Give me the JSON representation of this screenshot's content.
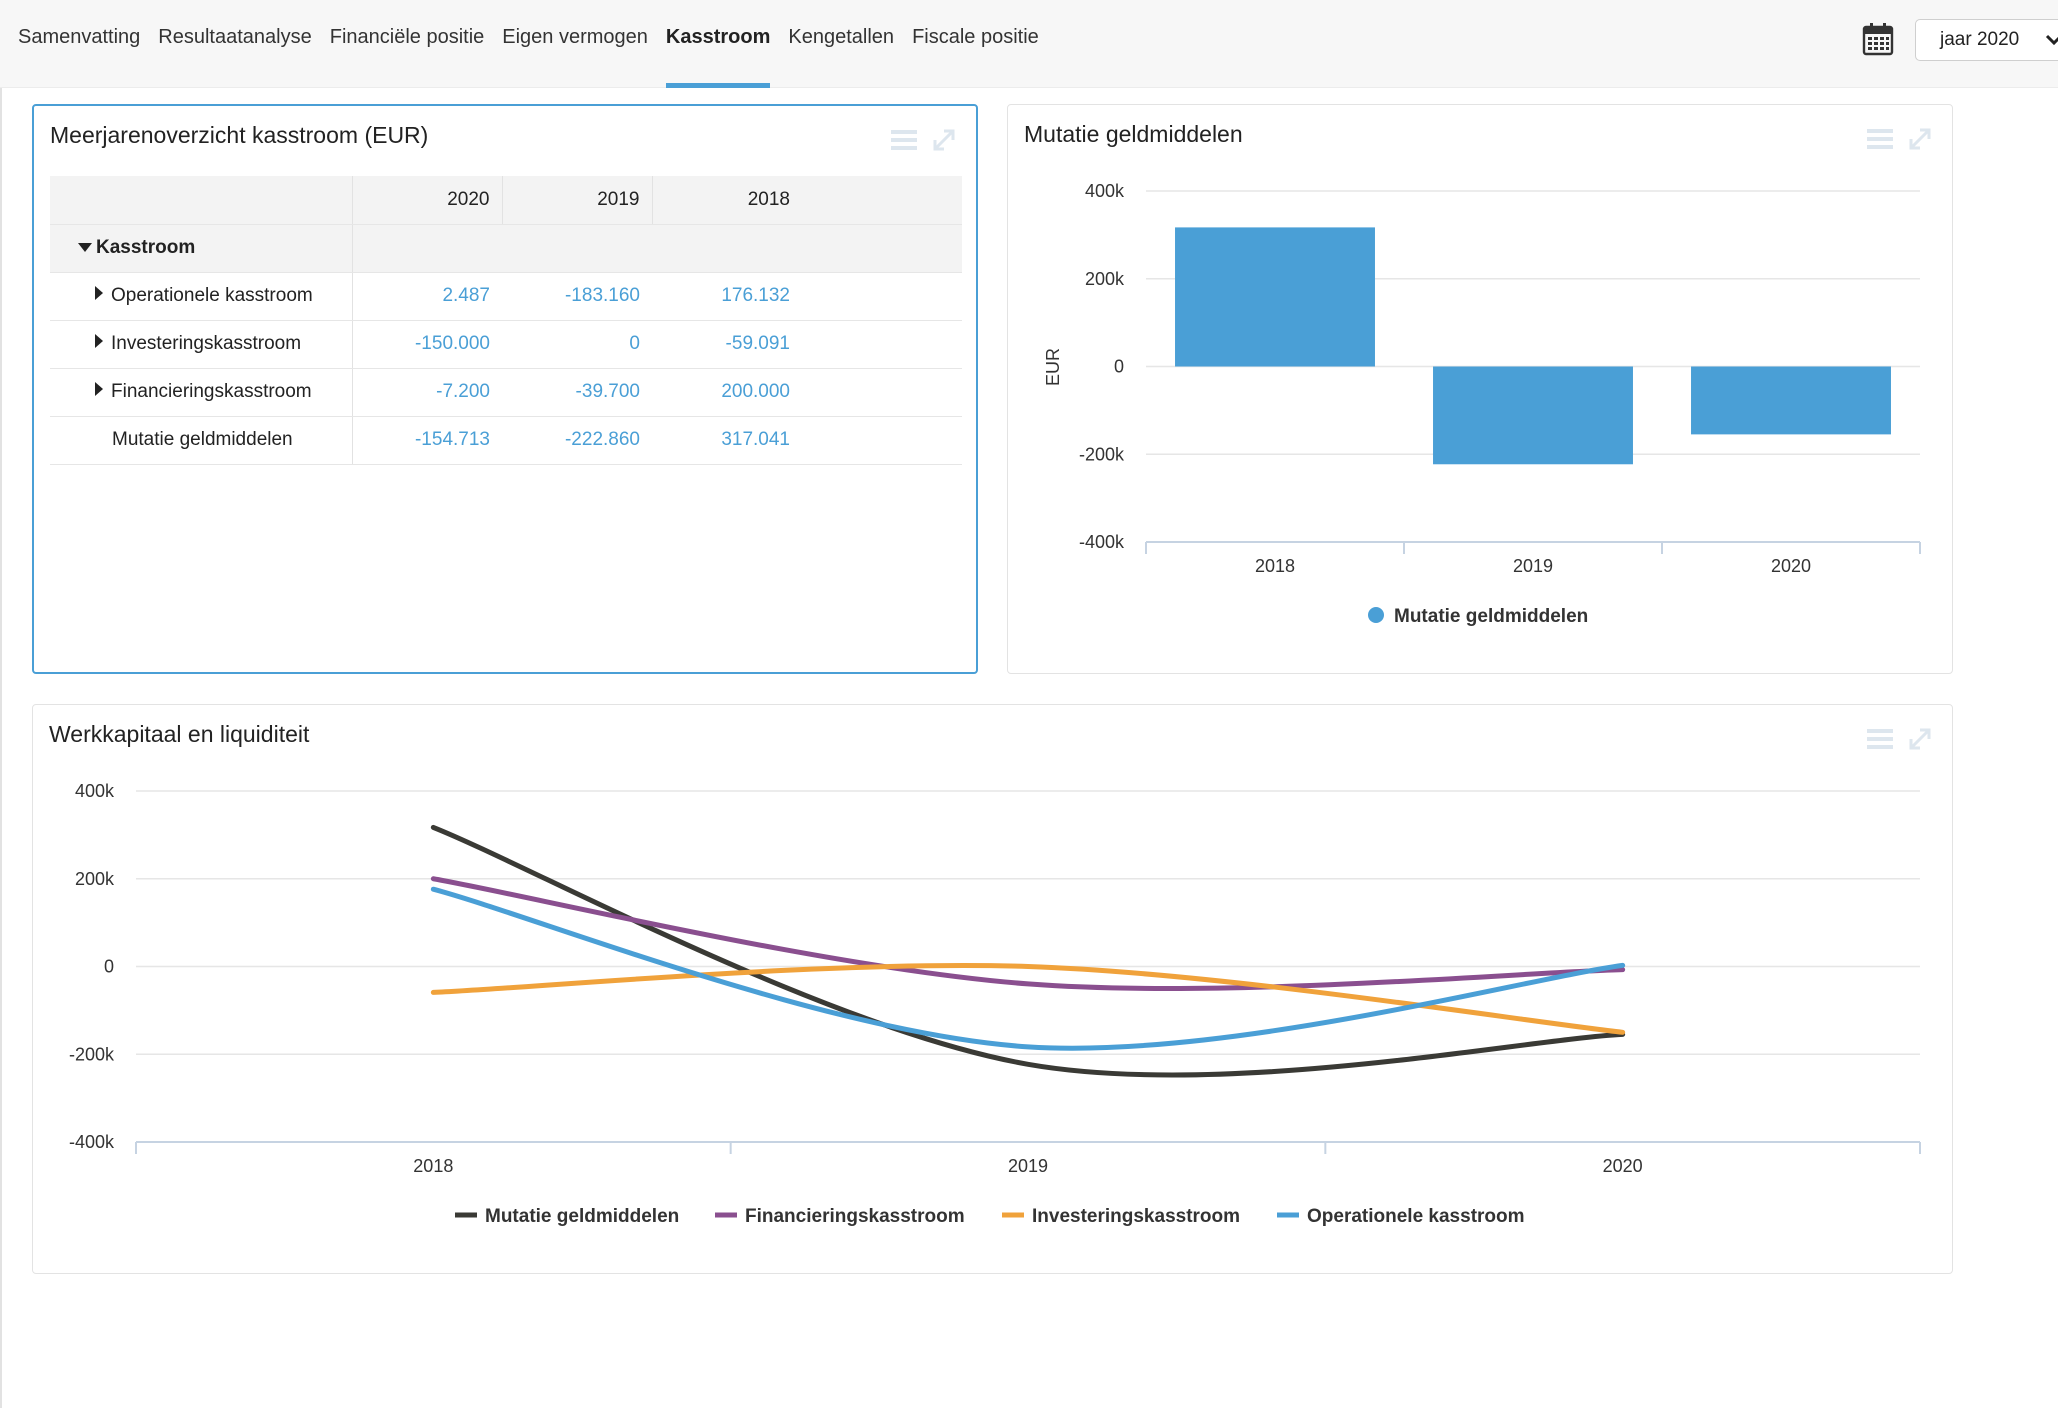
{
  "tabs": [
    {
      "label": "Samenvatting",
      "active": false
    },
    {
      "label": "Resultaatanalyse",
      "active": false
    },
    {
      "label": "Financiële positie",
      "active": false
    },
    {
      "label": "Eigen vermogen",
      "active": false
    },
    {
      "label": "Kasstroom",
      "active": true
    },
    {
      "label": "Kengetallen",
      "active": false
    },
    {
      "label": "Fiscale positie",
      "active": false
    }
  ],
  "header": {
    "calendar_icon": "calendar-icon",
    "year_select": "jaar 2020"
  },
  "table_panel": {
    "title": "Meerjarenoverzicht kasstroom (EUR)",
    "columns": [
      "2020",
      "2019",
      "2018"
    ],
    "group_label": "Kasstroom",
    "rows": [
      {
        "label": "Operationele kasstroom",
        "expandable": true,
        "values": [
          "2.487",
          "-183.160",
          "176.132"
        ]
      },
      {
        "label": "Investeringskasstroom",
        "expandable": true,
        "values": [
          "-150.000",
          "0",
          "-59.091"
        ]
      },
      {
        "label": "Financieringskasstroom",
        "expandable": true,
        "values": [
          "-7.200",
          "-39.700",
          "200.000"
        ]
      },
      {
        "label": "Mutatie geldmiddelen",
        "expandable": false,
        "values": [
          "-154.713",
          "-222.860",
          "317.041"
        ]
      }
    ]
  },
  "accent_color": "#4a9fd6",
  "chart_data": [
    {
      "type": "bar",
      "title": "Mutatie geldmiddelen",
      "categories": [
        "2018",
        "2019",
        "2020"
      ],
      "series": [
        {
          "name": "Mutatie geldmiddelen",
          "color": "#4a9fd6",
          "values": [
            317041,
            -222860,
            -154713
          ]
        }
      ],
      "xlabel": "",
      "ylabel": "EUR",
      "ylim": [
        -400000,
        400000
      ],
      "yticks": [
        400000,
        200000,
        0,
        -200000,
        -400000
      ],
      "ytick_labels": [
        "400k",
        "200k",
        "0",
        "-200k",
        "-400k"
      ],
      "grid": true,
      "legend": "bottom-center"
    },
    {
      "type": "line",
      "title": "Werkkapitaal en liquiditeit",
      "categories": [
        "2018",
        "2019",
        "2020"
      ],
      "series": [
        {
          "name": "Mutatie geldmiddelen",
          "color": "#3a3a35",
          "values": [
            317041,
            -222860,
            -154713
          ]
        },
        {
          "name": "Financieringskasstroom",
          "color": "#8a4f8f",
          "values": [
            200000,
            -39700,
            -7200
          ]
        },
        {
          "name": "Investeringskasstroom",
          "color": "#f0a23b",
          "values": [
            -59091,
            0,
            -150000
          ]
        },
        {
          "name": "Operationele kasstroom",
          "color": "#4a9fd6",
          "values": [
            176132,
            -183160,
            2487
          ]
        }
      ],
      "xlabel": "",
      "ylabel": "",
      "ylim": [
        -400000,
        400000
      ],
      "yticks": [
        400000,
        200000,
        0,
        -200000,
        -400000
      ],
      "ytick_labels": [
        "400k",
        "200k",
        "0",
        "-200k",
        "-400k"
      ],
      "grid": true,
      "legend": "bottom-center"
    }
  ]
}
